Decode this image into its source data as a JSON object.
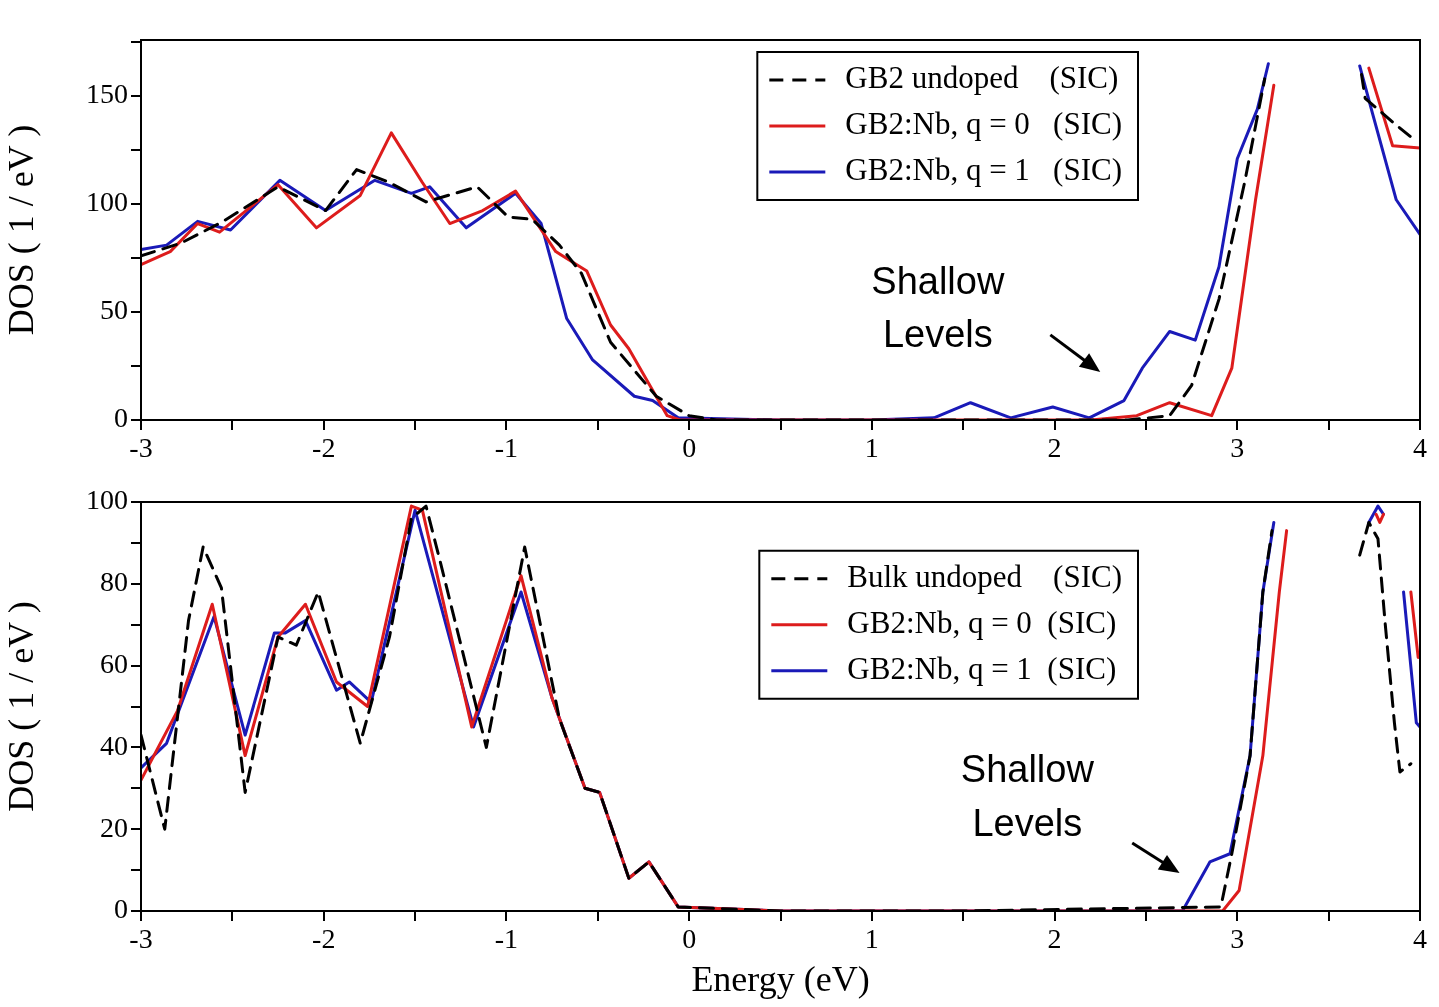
{
  "chart_data": [
    {
      "type": "line",
      "ylabel": "DOS ( 1 / eV )",
      "xlim": [
        -3,
        4
      ],
      "ylim": [
        0,
        176
      ],
      "xticks": [
        -3,
        {
          "value": -2.5,
          "label": null
        },
        -2,
        {
          "value": -1.5,
          "label": null
        },
        -1,
        {
          "value": -0.5,
          "label": null
        },
        0,
        {
          "value": 0.5,
          "label": null
        },
        1,
        {
          "value": 1.5,
          "label": null
        },
        2,
        {
          "value": 2.5,
          "label": null
        },
        3,
        {
          "value": 3.5,
          "label": null
        },
        4
      ],
      "yticks": [
        0,
        {
          "value": 25,
          "label": null
        },
        50,
        {
          "value": 75,
          "label": null
        },
        100,
        {
          "value": 125,
          "label": null
        },
        150,
        {
          "value": 175,
          "label": null
        }
      ],
      "legend": "top right",
      "annotations": [
        "Shallow Levels"
      ],
      "series": [
        {
          "name": "GB2 undoped    (SIC)",
          "color": "#000000",
          "line_style": "dashed",
          "x": [
            -3,
            -2.78,
            -2.55,
            -2.25,
            -1.99,
            -1.82,
            -1.64,
            -1.44,
            -1.16,
            -0.99,
            -0.86,
            -0.71,
            -0.59,
            -0.43,
            -0.18,
            0,
            0.15,
            1.0,
            2.4,
            2.63,
            2.75,
            2.9,
            3.04,
            3.15,
            3.4,
            3.68,
            3.7,
            3.85,
            3.98
          ],
          "values": [
            76,
            82,
            92,
            108,
            97,
            116,
            110,
            101,
            108,
            94,
            93,
            81,
            68,
            36,
            11,
            2,
            0,
            0,
            0,
            2,
            16,
            56,
            110,
            158,
            null,
            160,
            149,
            138,
            129
          ]
        },
        {
          "name": "GB2:Nb, q = 0   (SIC)",
          "color": "#dd1c1c",
          "line_style": "solid",
          "x": [
            -3,
            -2.84,
            -2.69,
            -2.57,
            -2.25,
            -2.04,
            -1.8,
            -1.63,
            -1.46,
            -1.31,
            -1.13,
            -0.95,
            -0.73,
            -0.56,
            -0.43,
            -0.33,
            -0.12,
            -0.05,
            1.0,
            2.2,
            2.45,
            2.63,
            2.86,
            2.97,
            3.1,
            3.2,
            3.45,
            3.72,
            3.85,
            4.0
          ],
          "values": [
            72,
            78,
            91,
            87,
            109,
            89,
            104,
            133,
            110,
            91,
            97,
            106,
            78,
            69,
            44,
            33,
            2,
            0,
            0,
            0,
            2,
            8,
            2,
            24,
            102,
            155,
            null,
            163,
            127,
            126
          ]
        },
        {
          "name": "GB2:Nb, q = 1   (SIC)",
          "color": "#1a1ab8",
          "line_style": "solid",
          "x": [
            -3,
            -2.86,
            -2.69,
            -2.51,
            -2.24,
            -1.99,
            -1.72,
            -1.52,
            -1.42,
            -1.22,
            -0.95,
            -0.81,
            -0.67,
            -0.53,
            -0.3,
            -0.2,
            -0.06,
            0.5,
            1.0,
            1.34,
            1.54,
            1.76,
            1.99,
            2.19,
            2.38,
            2.48,
            2.63,
            2.77,
            2.9,
            3.0,
            3.11,
            3.17,
            3.4,
            3.67,
            3.74,
            3.87,
            4.0
          ],
          "values": [
            79,
            81,
            92,
            88,
            111,
            97,
            111,
            105,
            108,
            89,
            105,
            91,
            47,
            28,
            11,
            9,
            1,
            0,
            0,
            1,
            8,
            1,
            6,
            1,
            9,
            24,
            41,
            37,
            71,
            121,
            144,
            165,
            null,
            164,
            142,
            102,
            86
          ]
        }
      ]
    },
    {
      "type": "line",
      "xlabel": "Energy (eV)",
      "ylabel": "DOS ( 1 / eV )",
      "xlim": [
        -3,
        4
      ],
      "ylim": [
        0,
        100
      ],
      "xticks": [
        -3,
        {
          "value": -2.5,
          "label": null
        },
        -2,
        {
          "value": -1.5,
          "label": null
        },
        -1,
        {
          "value": -0.5,
          "label": null
        },
        0,
        {
          "value": 0.5,
          "label": null
        },
        1,
        {
          "value": 1.5,
          "label": null
        },
        2,
        {
          "value": 2.5,
          "label": null
        },
        3,
        {
          "value": 3.5,
          "label": null
        },
        4
      ],
      "yticks": [
        0,
        {
          "value": 10,
          "label": null
        },
        20,
        {
          "value": 30,
          "label": null
        },
        40,
        {
          "value": 50,
          "label": null
        },
        60,
        {
          "value": 70,
          "label": null
        },
        80,
        {
          "value": 90,
          "label": null
        },
        100
      ],
      "legend": "right",
      "annotations": [
        "Shallow Levels"
      ],
      "series": [
        {
          "name": "Bulk undoped    (SIC)",
          "color": "#000000",
          "line_style": "dashed",
          "x": [
            -3,
            -2.87,
            -2.74,
            -2.66,
            -2.56,
            -2.43,
            -2.25,
            -2.15,
            -2.03,
            -1.8,
            -1.64,
            -1.52,
            -1.44,
            -1.36,
            -1.11,
            -0.9,
            -0.71,
            -0.57,
            -0.49,
            -0.33,
            -0.22,
            -0.06,
            0.5,
            1.5,
            2.91,
            2.97,
            3.07,
            3.14,
            3.19,
            3.45,
            3.67,
            3.72,
            3.77,
            3.81,
            3.86,
            3.89,
            3.95
          ],
          "values": [
            43,
            20,
            71,
            89,
            79,
            29,
            67,
            65,
            78,
            41,
            67,
            96,
            99,
            85,
            40,
            89,
            47,
            30,
            29,
            8,
            12,
            1,
            0,
            0,
            1,
            14,
            38,
            78,
            93,
            null,
            87,
            95,
            91,
            70,
            46,
            34,
            36
          ]
        },
        {
          "name": "GB2:Nb, q = 0  (SIC)",
          "color": "#dd1c1c",
          "line_style": "solid",
          "x": [
            -3,
            -2.8,
            -2.61,
            -2.43,
            -2.25,
            -2.1,
            -1.93,
            -1.76,
            -1.52,
            -1.46,
            -1.19,
            -0.92,
            -0.75,
            -0.57,
            -0.49,
            -0.33,
            -0.22,
            -0.06,
            0.5,
            1.5,
            2.92,
            3.01,
            3.14,
            3.23,
            3.27,
            3.5,
            3.76,
            3.78,
            3.8,
            3.86,
            3.95,
            3.99
          ],
          "values": [
            32,
            49,
            75,
            38,
            67,
            75,
            56,
            50,
            99,
            98,
            45,
            82,
            52,
            30,
            29,
            8,
            12,
            1,
            0,
            0,
            0,
            5,
            38,
            78,
            93,
            null,
            97,
            95,
            97,
            null,
            78,
            62
          ]
        },
        {
          "name": "GB2:Nb, q = 1  (SIC)",
          "color": "#1a1ab8",
          "line_style": "solid",
          "x": [
            -3,
            -2.86,
            -2.6,
            -2.43,
            -2.27,
            -2.21,
            -2.1,
            -1.93,
            -1.86,
            -1.74,
            -1.5,
            -1.18,
            -0.92,
            -0.75,
            -0.57,
            -0.49,
            -0.33,
            -0.22,
            -0.06,
            0.5,
            1.5,
            2.7,
            2.85,
            2.96,
            3.07,
            3.14,
            3.2,
            3.45,
            3.72,
            3.77,
            3.8,
            3.86,
            3.91,
            3.98,
            4.0
          ],
          "values": [
            35,
            41,
            72,
            43,
            68,
            68,
            71,
            54,
            56,
            51,
            98,
            45,
            78,
            52,
            30,
            29,
            8,
            12,
            1,
            0,
            0,
            0,
            12,
            14,
            38,
            78,
            95,
            null,
            95,
            99,
            97,
            null,
            78,
            46,
            45
          ]
        }
      ]
    }
  ]
}
